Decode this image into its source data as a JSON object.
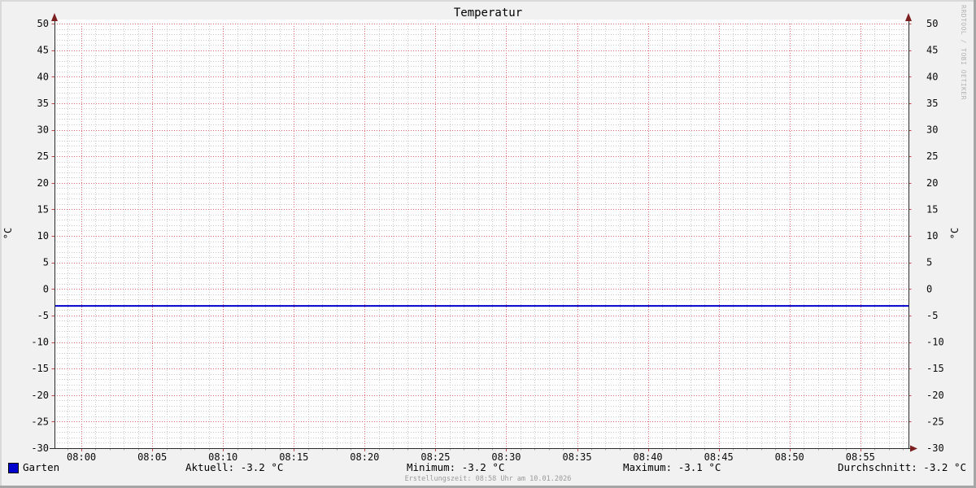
{
  "title": "Temperatur",
  "watermark": "RRDTOOL / TOBI OETIKER",
  "chart_data": {
    "type": "line",
    "title": "Temperatur",
    "ylabel": "°C",
    "legend_position": "bottom",
    "grid_on": true,
    "y_axis": {
      "min": -30,
      "max": 50,
      "major_step": 5,
      "minor_step": 1,
      "major_tick_labels": [
        50,
        45,
        40,
        35,
        30,
        25,
        20,
        15,
        10,
        5,
        0,
        -5,
        -10,
        -15,
        -20,
        -25,
        -30
      ],
      "unit": "°C"
    },
    "x_axis": {
      "start_offset_min": -1.9,
      "end_offset_min": 58.4,
      "minor_step_min": 1,
      "major_ticks": [
        {
          "offset_min": 0,
          "label": "08:00"
        },
        {
          "offset_min": 5,
          "label": "08:05"
        },
        {
          "offset_min": 10,
          "label": "08:10"
        },
        {
          "offset_min": 15,
          "label": "08:15"
        },
        {
          "offset_min": 20,
          "label": "08:20"
        },
        {
          "offset_min": 25,
          "label": "08:25"
        },
        {
          "offset_min": 30,
          "label": "08:30"
        },
        {
          "offset_min": 35,
          "label": "08:35"
        },
        {
          "offset_min": 40,
          "label": "08:40"
        },
        {
          "offset_min": 45,
          "label": "08:45"
        },
        {
          "offset_min": 50,
          "label": "08:50"
        },
        {
          "offset_min": 55,
          "label": "08:55"
        }
      ]
    },
    "series": [
      {
        "name": "Garten",
        "color": "#0000cc",
        "constant_value": -3.2,
        "line_width": 2
      }
    ],
    "colors": {
      "background": "#f1f1f1",
      "canvas": "#ffffff",
      "axis": "#2b2b2b",
      "arrow": "#7c1f1f",
      "grid_major": "#dd6a6a",
      "grid_minor": "#c9c9c9",
      "tick_major": "#c04848",
      "tick_minor": "#a0a0a0"
    }
  },
  "legend": {
    "series_label": "Garten",
    "stats": {
      "aktuell": "Aktuell: -3.2 °C",
      "minimum": "Minimum: -3.2 °C",
      "maximum": "Maximum: -3.1 °C",
      "durchschnitt": "Durchschnitt: -3.2 °C"
    }
  },
  "footer": {
    "erstellungszeit": "Erstellungszeit: 08:58 Uhr am 10.01.2026"
  }
}
